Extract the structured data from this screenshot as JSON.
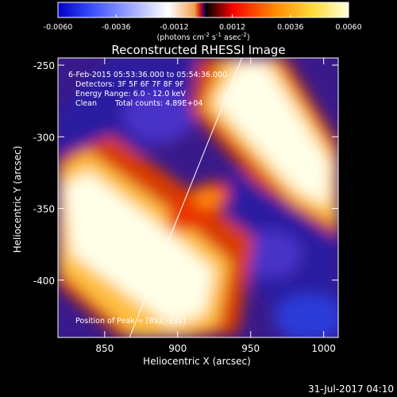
{
  "chart_data": {
    "type": "heatmap",
    "title": "Reconstructed RHESSI Image",
    "xlabel": "Heliocentric X (arcsec)",
    "ylabel": "Heliocentric Y (arcsec)",
    "x_ticks": [
      "850",
      "900",
      "950",
      "1000"
    ],
    "x_tick_values": [
      850,
      900,
      950,
      1000
    ],
    "y_ticks": [
      "-250",
      "-300",
      "-350",
      "-400"
    ],
    "y_tick_values": [
      -250,
      -300,
      -350,
      -400
    ],
    "xlim": [
      818,
      1010
    ],
    "ylim": [
      -440,
      -245
    ],
    "colorbar": {
      "ticks": [
        "-0.0060",
        "-0.0036",
        "-0.0012",
        "0.0012",
        "0.0036",
        "0.0060"
      ],
      "tick_values": [
        -0.006,
        -0.0036,
        -0.0012,
        0.0012,
        0.0036,
        0.006
      ],
      "range": [
        -0.006,
        0.006
      ],
      "units": "(photons cm",
      "units_sup1": "-2",
      "units_mid": " s",
      "units_sup2": "-1",
      "units_mid2": " asec",
      "units_sup3": "-2",
      "units_end": ")"
    },
    "annotations": {
      "time_range": "6-Feb-2015 05:53:36.000 to 05:54:36.000",
      "detectors": "Detectors: 3F 5F 6F 7F 8F 9F",
      "energy": "Energy Range: 6.0 - 12.0 keV",
      "method": "Clean",
      "counts": "Total counts: 4.89E+04",
      "peak": "Position of Peak = [892,-331]"
    },
    "limb_line": [
      [
        867,
        -440
      ],
      [
        944,
        -245
      ]
    ],
    "colors": {
      "colormap": [
        "#0000c8",
        "#3c50ff",
        "#ffffff",
        "#f0a050",
        "#c81400",
        "#500078",
        "#000000",
        "#fa0000",
        "#ff8c00",
        "#ffdc3c",
        "#ffffdc"
      ]
    }
  },
  "footer": {
    "date": "31-Jul-2017 04:10"
  }
}
